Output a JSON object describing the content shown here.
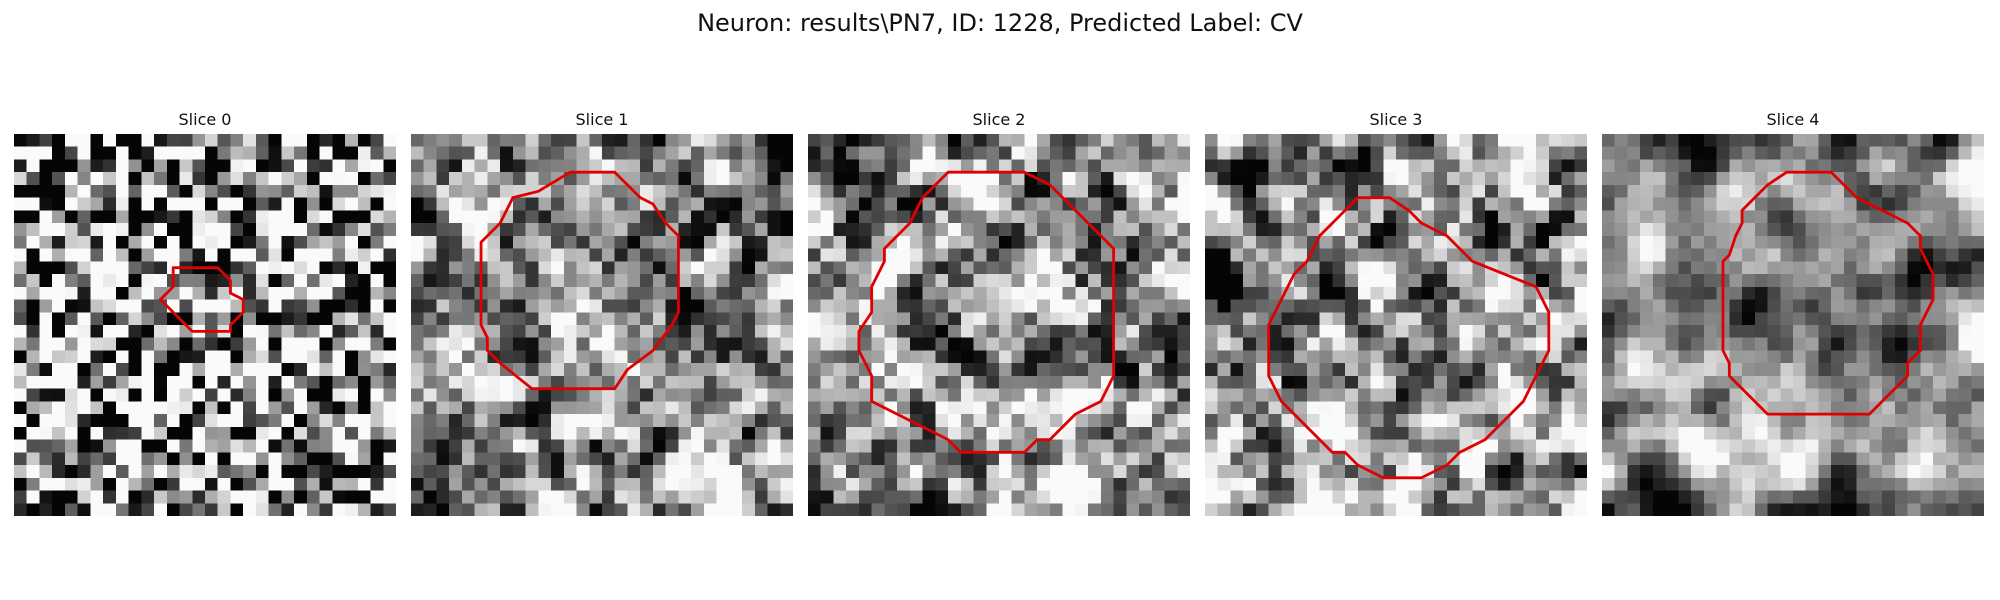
{
  "title": "Neuron: results\\PN7, ID: 1228, Predicted Label: CV",
  "contour_color": "#e00000",
  "panels": [
    {
      "label": "Slice 0",
      "seed": 11,
      "blur": 0,
      "contrast": 0.45
    },
    {
      "label": "Slice 1",
      "seed": 23,
      "blur": 1,
      "contrast": 0.55
    },
    {
      "label": "Slice 2",
      "seed": 37,
      "blur": 1,
      "contrast": 0.6
    },
    {
      "label": "Slice 3",
      "seed": 51,
      "blur": 1,
      "contrast": 0.6
    },
    {
      "label": "Slice 4",
      "seed": 67,
      "blur": 2,
      "contrast": 0.65
    }
  ]
}
